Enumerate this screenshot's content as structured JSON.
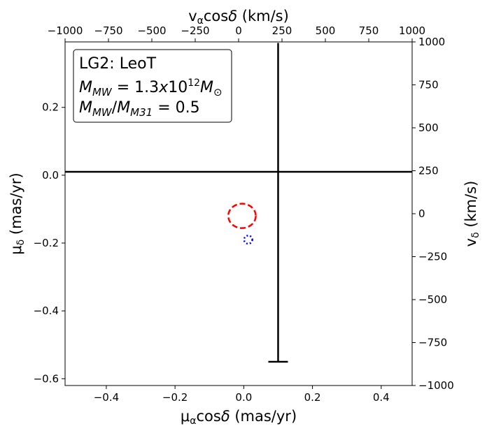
{
  "chart_data": {
    "type": "scatter",
    "title": "",
    "xlabel": "μαcosδ (mas/yr)",
    "ylabel": "μδ (mas/yr)",
    "xlabel_top": "vαcosδ (km/s)",
    "ylabel_right": "vδ (km/s)",
    "xlim": [
      -0.52,
      0.49
    ],
    "ylim": [
      -0.62,
      0.393
    ],
    "xlim_top": [
      -1000,
      1000
    ],
    "ylim_right": [
      -1000,
      1000
    ],
    "xticks": [
      -0.4,
      -0.2,
      0.0,
      0.2,
      0.4
    ],
    "xtick_labels": [
      "−0.4",
      "−0.2",
      "0.0",
      "0.2",
      "0.4"
    ],
    "yticks": [
      -0.6,
      -0.4,
      -0.2,
      0.0,
      0.2
    ],
    "ytick_labels": [
      "−0.6",
      "−0.4",
      "−0.2",
      "0.0",
      "0.2"
    ],
    "xticks_top": [
      -1000,
      -750,
      -500,
      -250,
      0,
      250,
      500,
      750,
      1000
    ],
    "xtick_labels_top": [
      "−1000",
      "−750",
      "−500",
      "−250",
      "0",
      "250",
      "500",
      "750",
      "1000"
    ],
    "yticks_right": [
      -1000,
      -750,
      -500,
      -250,
      0,
      250,
      500,
      750,
      1000
    ],
    "ytick_labels_right": [
      "−1000",
      "−750",
      "−500",
      "−250",
      "0",
      "250",
      "500",
      "750",
      "1000"
    ],
    "grid": false,
    "legend_box": {
      "placement": "top-left",
      "lines": [
        "LG2: LeoT",
        "M_MW = 1.3x10^12 M_⊙",
        "M_MW/M_M31 = 0.5"
      ]
    },
    "point": {
      "x": 0.1,
      "y": 0.01,
      "xerr": [
        0.62,
        0.39
      ],
      "yerr": [
        0.56,
        0.38
      ],
      "color": "#000000"
    },
    "ellipses": [
      {
        "cx": -0.005,
        "cy": -0.12,
        "rx": 0.04,
        "ry": 0.036,
        "color": "#ff0000",
        "style": "dashed"
      },
      {
        "cx": 0.013,
        "cy": -0.19,
        "rx": 0.012,
        "ry": 0.012,
        "color": "#0000ff",
        "style": "dotted"
      }
    ]
  }
}
